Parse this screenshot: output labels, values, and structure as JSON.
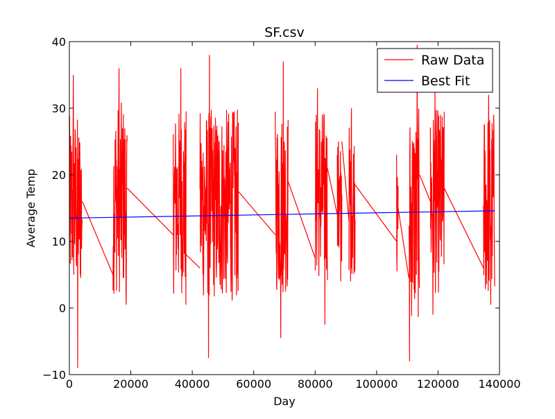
{
  "chart_data": {
    "type": "line",
    "title": "SF.csv",
    "xlabel": "Day",
    "ylabel": "Average Temp",
    "xlim": [
      0,
      140000
    ],
    "ylim": [
      -10,
      40
    ],
    "xticks": [
      0,
      20000,
      40000,
      60000,
      80000,
      100000,
      120000,
      140000
    ],
    "yticks": [
      -10,
      0,
      10,
      20,
      30,
      40
    ],
    "xtick_labels": [
      "0",
      "20000",
      "40000",
      "60000",
      "80000",
      "100000",
      "120000",
      "140000"
    ],
    "ytick_labels": [
      "−10",
      "0",
      "10",
      "20",
      "30",
      "40"
    ],
    "grid": false,
    "legend_position": "top-right",
    "series": [
      {
        "name": "Raw Data",
        "color": "#ff0000",
        "style": "dense-line",
        "segments": [
          {
            "x_start": 0,
            "x_end": 4200,
            "y_min": -9,
            "y_max": 35,
            "typical_min": 2,
            "typical_max": 29
          },
          {
            "x_start": 14200,
            "x_end": 18800,
            "y_min": 0.5,
            "y_max": 36,
            "typical_min": 2,
            "typical_max": 31
          },
          {
            "x_start": 33800,
            "x_end": 38000,
            "y_min": 0.5,
            "y_max": 36,
            "typical_min": 2,
            "typical_max": 30
          },
          {
            "x_start": 42500,
            "x_end": 55000,
            "y_min": -7.5,
            "y_max": 38,
            "typical_min": 1,
            "typical_max": 30
          },
          {
            "x_start": 67000,
            "x_end": 71200,
            "y_min": -4.5,
            "y_max": 37,
            "typical_min": 2,
            "typical_max": 30
          },
          {
            "x_start": 80000,
            "x_end": 84000,
            "y_min": -2.5,
            "y_max": 33,
            "typical_min": 4,
            "typical_max": 30
          },
          {
            "x_start": 87200,
            "x_end": 88700,
            "y_min": 4,
            "y_max": 25,
            "typical_min": 5,
            "typical_max": 25
          },
          {
            "x_start": 91000,
            "x_end": 93000,
            "y_min": 4,
            "y_max": 30,
            "typical_min": 5,
            "typical_max": 28
          },
          {
            "x_start": 106500,
            "x_end": 107000,
            "y_min": 5.5,
            "y_max": 23,
            "typical_min": 6,
            "typical_max": 20
          },
          {
            "x_start": 110500,
            "x_end": 114000,
            "y_min": -8,
            "y_max": 39.5,
            "typical_min": -2,
            "typical_max": 30
          },
          {
            "x_start": 117500,
            "x_end": 122000,
            "y_min": -1,
            "y_max": 33,
            "typical_min": 2,
            "typical_max": 30
          },
          {
            "x_start": 134800,
            "x_end": 138500,
            "y_min": 0.5,
            "y_max": 32,
            "typical_min": 1,
            "typical_max": 30
          }
        ],
        "connectors": [
          {
            "x": [
              4200,
              14200
            ],
            "y": [
              16,
              5
            ]
          },
          {
            "x": [
              18800,
              33800
            ],
            "y": [
              18,
              11
            ]
          },
          {
            "x": [
              38000,
              42500
            ],
            "y": [
              8,
              6
            ]
          },
          {
            "x": [
              55000,
              67000
            ],
            "y": [
              17.5,
              11
            ]
          },
          {
            "x": [
              71200,
              80000
            ],
            "y": [
              19,
              7.5
            ]
          },
          {
            "x": [
              84000,
              87200
            ],
            "y": [
              21,
              14
            ]
          },
          {
            "x": [
              88700,
              91000
            ],
            "y": [
              25,
              13
            ]
          },
          {
            "x": [
              93000,
              106500
            ],
            "y": [
              18.5,
              10
            ]
          },
          {
            "x": [
              107000,
              110500
            ],
            "y": [
              15,
              4.5
            ]
          },
          {
            "x": [
              114000,
              117500
            ],
            "y": [
              20,
              16
            ]
          },
          {
            "x": [
              122000,
              134800
            ],
            "y": [
              18,
              6
            ]
          }
        ]
      },
      {
        "name": "Best Fit",
        "color": "#0000ff",
        "x": [
          0,
          138500
        ],
        "y": [
          13.5,
          14.6
        ]
      }
    ]
  }
}
